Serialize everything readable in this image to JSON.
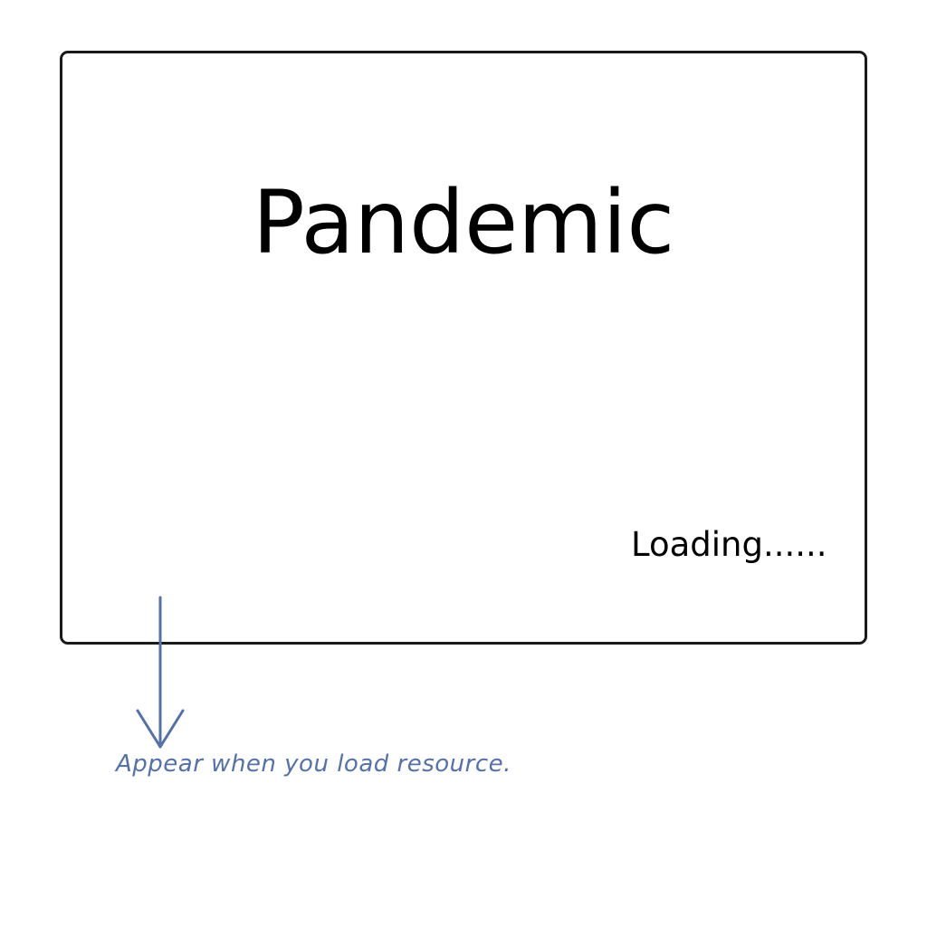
{
  "screen": {
    "title": "Pandemic",
    "loading_label": "Loading......"
  },
  "annotation": {
    "note": "Appear when you load resource.",
    "color": "#5571a8",
    "icon": "arrow-down-icon"
  },
  "colors": {
    "frame_border": "#1a1a1a",
    "text": "#000000",
    "background": "#ffffff"
  }
}
